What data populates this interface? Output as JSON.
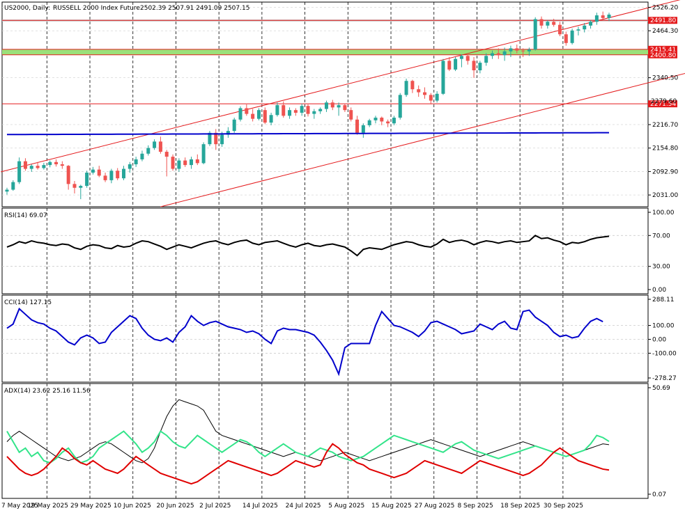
{
  "header": {
    "symbol": "US2000, Daily:",
    "description": "RUSSELL 2000 Index Future",
    "ohlc": "2502.39 2507.91 2491.09 2507.15"
  },
  "colors": {
    "bull": "#26a69a",
    "bear": "#ef5350",
    "ma": "#0000cc",
    "channel": "#e41a1c",
    "hline": "#e41a1c",
    "zone_green": "#9be07a",
    "zone_grey": "#c8c8c8",
    "rsi": "#000000",
    "cci": "#0000cc",
    "adx": "#000000",
    "plus_di": "#33e48a",
    "minus_di": "#e00000"
  },
  "chart_data": [
    {
      "panel": "price",
      "type": "candlestick",
      "ylim": [
        2000,
        2540
      ],
      "yticks": [
        "2526.20",
        "2464.30",
        "2340.50",
        "2216.70",
        "2154.80",
        "2092.90",
        "2031.00"
      ],
      "price_tags": [
        "2491.80",
        "2415.41",
        "2400.80",
        "2271.54"
      ],
      "partial_tag": "2279.60",
      "x_dates": [
        "7 May 2025",
        "19 May 2025",
        "29 May 2025",
        "10 Jun 2025",
        "20 Jun 2025",
        "2 Jul 2025",
        "14 Jul 2025",
        "24 Jul 2025",
        "5 Aug 2025",
        "15 Aug 2025",
        "27 Aug 2025",
        "8 Sep 2025",
        "18 Sep 2025",
        "30 Sep 2025"
      ],
      "candles": [
        [
          2040,
          2050,
          2032,
          2045
        ],
        [
          2045,
          2070,
          2042,
          2065
        ],
        [
          2065,
          2130,
          2060,
          2120
        ],
        [
          2120,
          2128,
          2095,
          2100
        ],
        [
          2100,
          2112,
          2092,
          2108
        ],
        [
          2108,
          2118,
          2098,
          2102
        ],
        [
          2102,
          2116,
          2098,
          2110
        ],
        [
          2110,
          2122,
          2104,
          2118
        ],
        [
          2118,
          2125,
          2106,
          2112
        ],
        [
          2112,
          2120,
          2100,
          2108
        ],
        [
          2108,
          2110,
          2045,
          2060
        ],
        [
          2060,
          2068,
          2035,
          2050
        ],
        [
          2050,
          2058,
          2020,
          2055
        ],
        [
          2055,
          2095,
          2050,
          2090
        ],
        [
          2090,
          2105,
          2085,
          2098
        ],
        [
          2098,
          2108,
          2078,
          2082
        ],
        [
          2082,
          2090,
          2065,
          2070
        ],
        [
          2070,
          2100,
          2062,
          2095
        ],
        [
          2095,
          2102,
          2070,
          2075
        ],
        [
          2075,
          2108,
          2070,
          2100
        ],
        [
          2100,
          2118,
          2090,
          2112
        ],
        [
          2112,
          2132,
          2105,
          2125
        ],
        [
          2125,
          2148,
          2120,
          2140
        ],
        [
          2140,
          2162,
          2135,
          2155
        ],
        [
          2155,
          2178,
          2150,
          2172
        ],
        [
          2172,
          2185,
          2140,
          2145
        ],
        [
          2145,
          2150,
          2080,
          2132
        ],
        [
          2132,
          2138,
          2095,
          2100
        ],
        [
          2100,
          2128,
          2092,
          2122
        ],
        [
          2122,
          2130,
          2105,
          2110
        ],
        [
          2110,
          2132,
          2100,
          2125
        ],
        [
          2125,
          2138,
          2110,
          2115
        ],
        [
          2115,
          2170,
          2112,
          2165
        ],
        [
          2165,
          2200,
          2160,
          2195
        ],
        [
          2195,
          2205,
          2150,
          2165
        ],
        [
          2165,
          2198,
          2158,
          2190
        ],
        [
          2190,
          2210,
          2182,
          2200
        ],
        [
          2200,
          2235,
          2195,
          2230
        ],
        [
          2230,
          2265,
          2225,
          2260
        ],
        [
          2260,
          2270,
          2240,
          2245
        ],
        [
          2245,
          2258,
          2225,
          2232
        ],
        [
          2232,
          2260,
          2228,
          2255
        ],
        [
          2255,
          2262,
          2218,
          2222
        ],
        [
          2222,
          2248,
          2215,
          2242
        ],
        [
          2242,
          2275,
          2238,
          2268
        ],
        [
          2268,
          2278,
          2235,
          2240
        ],
        [
          2240,
          2262,
          2232,
          2255
        ],
        [
          2255,
          2260,
          2240,
          2248
        ],
        [
          2248,
          2272,
          2240,
          2266
        ],
        [
          2266,
          2270,
          2238,
          2245
        ],
        [
          2245,
          2258,
          2232,
          2252
        ],
        [
          2252,
          2262,
          2245,
          2258
        ],
        [
          2258,
          2280,
          2250,
          2275
        ],
        [
          2275,
          2282,
          2255,
          2262
        ],
        [
          2262,
          2275,
          2240,
          2268
        ],
        [
          2268,
          2272,
          2250,
          2255
        ],
        [
          2255,
          2262,
          2225,
          2230
        ],
        [
          2230,
          2240,
          2190,
          2195
        ],
        [
          2195,
          2220,
          2182,
          2215
        ],
        [
          2215,
          2232,
          2210,
          2228
        ],
        [
          2228,
          2240,
          2220,
          2235
        ],
        [
          2235,
          2238,
          2215,
          2225
        ],
        [
          2225,
          2230,
          2210,
          2220
        ],
        [
          2220,
          2240,
          2215,
          2235
        ],
        [
          2235,
          2300,
          2230,
          2295
        ],
        [
          2295,
          2338,
          2290,
          2332
        ],
        [
          2332,
          2335,
          2300,
          2310
        ],
        [
          2310,
          2320,
          2290,
          2302
        ],
        [
          2302,
          2315,
          2285,
          2295
        ],
        [
          2295,
          2300,
          2270,
          2280
        ],
        [
          2280,
          2305,
          2275,
          2298
        ],
        [
          2298,
          2390,
          2295,
          2385
        ],
        [
          2385,
          2395,
          2358,
          2362
        ],
        [
          2362,
          2395,
          2358,
          2390
        ],
        [
          2390,
          2402,
          2368,
          2398
        ],
        [
          2398,
          2402,
          2375,
          2385
        ],
        [
          2385,
          2395,
          2340,
          2360
        ],
        [
          2360,
          2385,
          2352,
          2380
        ],
        [
          2380,
          2405,
          2372,
          2398
        ],
        [
          2398,
          2412,
          2390,
          2405
        ],
        [
          2405,
          2418,
          2390,
          2400
        ],
        [
          2400,
          2420,
          2385,
          2410
        ],
        [
          2410,
          2425,
          2395,
          2418
        ],
        [
          2418,
          2428,
          2405,
          2412
        ],
        [
          2412,
          2418,
          2395,
          2410
        ],
        [
          2410,
          2420,
          2398,
          2415
        ],
        [
          2415,
          2500,
          2412,
          2495
        ],
        [
          2495,
          2502,
          2470,
          2478
        ],
        [
          2478,
          2492,
          2470,
          2488
        ],
        [
          2488,
          2496,
          2475,
          2480
        ],
        [
          2480,
          2488,
          2450,
          2455
        ],
        [
          2455,
          2462,
          2425,
          2432
        ],
        [
          2432,
          2470,
          2428,
          2465
        ],
        [
          2465,
          2475,
          2452,
          2468
        ],
        [
          2468,
          2485,
          2460,
          2478
        ],
        [
          2478,
          2492,
          2470,
          2488
        ],
        [
          2488,
          2512,
          2480,
          2505
        ],
        [
          2505,
          2515,
          2495,
          2498
        ],
        [
          2498,
          2512,
          2490,
          2507
        ]
      ]
    },
    {
      "panel": "RSI",
      "type": "line",
      "label": "RSI(14) 69.07",
      "ylim": [
        0,
        100
      ],
      "yticks": [
        "100.00",
        "70.00",
        "30.00",
        "0.00"
      ],
      "series": [
        {
          "values": [
            55,
            58,
            62,
            60,
            63,
            61,
            60,
            58,
            57,
            59,
            58,
            54,
            52,
            56,
            58,
            57,
            54,
            53,
            57,
            55,
            56,
            60,
            63,
            62,
            59,
            56,
            52,
            55,
            58,
            56,
            54,
            57,
            60,
            62,
            63,
            60,
            58,
            61,
            63,
            64,
            60,
            58,
            61,
            62,
            63,
            60,
            57,
            55,
            58,
            60,
            57,
            56,
            58,
            59,
            57,
            55,
            50,
            44,
            52,
            54,
            53,
            52,
            55,
            58,
            60,
            62,
            61,
            58,
            56,
            55,
            59,
            65,
            61,
            63,
            64,
            62,
            58,
            61,
            63,
            62,
            60,
            62,
            63,
            61,
            62,
            63,
            70,
            66,
            67,
            64,
            62,
            58,
            61,
            60,
            62,
            65,
            67,
            68,
            69
          ]
        }
      ]
    },
    {
      "panel": "CCI",
      "type": "line",
      "label": "CCI(14) 127.15",
      "ylim": [
        -278.27,
        288.11
      ],
      "yticks": [
        "288.11",
        "100.00",
        "0.00",
        "-100.00",
        "-278.27"
      ],
      "series": [
        {
          "values": [
            80,
            110,
            220,
            180,
            140,
            120,
            110,
            80,
            60,
            20,
            -20,
            -40,
            10,
            30,
            10,
            -30,
            -20,
            50,
            90,
            130,
            170,
            150,
            80,
            30,
            0,
            -10,
            10,
            -20,
            50,
            90,
            170,
            130,
            100,
            120,
            130,
            110,
            90,
            80,
            70,
            50,
            60,
            40,
            0,
            -30,
            60,
            80,
            70,
            70,
            60,
            50,
            30,
            -20,
            -80,
            -150,
            -250,
            -60,
            -30,
            -30,
            -30,
            -30,
            100,
            200,
            150,
            100,
            90,
            70,
            50,
            20,
            60,
            120,
            130,
            110,
            90,
            70,
            40,
            50,
            60,
            110,
            90,
            70,
            110,
            130,
            80,
            70,
            200,
            210,
            160,
            130,
            100,
            50,
            20,
            30,
            10,
            20,
            80,
            130,
            150,
            127
          ]
        }
      ]
    },
    {
      "panel": "ADX",
      "type": "line",
      "label": "ADX(14) 23.62 25.16 11.56",
      "ylim": [
        0.07,
        50.69
      ],
      "yticks": [
        "50.69",
        "0.07"
      ],
      "series": [
        {
          "values": [
            25,
            28,
            30,
            28,
            26,
            24,
            22,
            20,
            18,
            17,
            16,
            17,
            18,
            20,
            22,
            24,
            25,
            24,
            22,
            20,
            18,
            16,
            15,
            17,
            22,
            30,
            37,
            42,
            45,
            44,
            43,
            42,
            40,
            35,
            30,
            28,
            27,
            26,
            25,
            24,
            23,
            22,
            21,
            20,
            19,
            18,
            19,
            20,
            19,
            18,
            17,
            16,
            17,
            18,
            19,
            20,
            19,
            18,
            17,
            16,
            17,
            18,
            19,
            20,
            21,
            22,
            23,
            24,
            25,
            26,
            25,
            24,
            23,
            22,
            21,
            20,
            19,
            18,
            19,
            20,
            21,
            22,
            23,
            24,
            25,
            24,
            23,
            22,
            21,
            20,
            19,
            18,
            19,
            20,
            21,
            22,
            23,
            24,
            23.62
          ]
        },
        {
          "values": [
            30,
            25,
            20,
            22,
            18,
            20,
            16,
            15,
            17,
            20,
            22,
            18,
            15,
            16,
            18,
            22,
            24,
            26,
            28,
            30,
            27,
            24,
            20,
            22,
            25,
            30,
            28,
            25,
            23,
            22,
            25,
            28,
            26,
            24,
            22,
            20,
            22,
            24,
            26,
            25,
            23,
            20,
            18,
            20,
            22,
            24,
            22,
            20,
            19,
            18,
            20,
            22,
            21,
            20,
            18,
            17,
            16,
            17,
            18,
            20,
            22,
            24,
            26,
            28,
            27,
            26,
            25,
            24,
            23,
            22,
            21,
            20,
            22,
            24,
            25,
            23,
            21,
            20,
            19,
            18,
            17,
            18,
            19,
            20,
            21,
            22,
            23,
            22,
            21,
            20,
            19,
            18,
            19,
            20,
            21,
            24,
            28,
            27,
            25.16
          ]
        },
        {
          "values": [
            18,
            15,
            12,
            10,
            9,
            10,
            12,
            15,
            18,
            22,
            20,
            17,
            15,
            14,
            16,
            14,
            12,
            11,
            10,
            12,
            15,
            18,
            16,
            14,
            12,
            10,
            9,
            8,
            7,
            6,
            5,
            6,
            8,
            10,
            12,
            14,
            16,
            15,
            14,
            13,
            12,
            11,
            10,
            9,
            10,
            12,
            14,
            16,
            15,
            14,
            13,
            14,
            20,
            24,
            22,
            19,
            17,
            15,
            14,
            12,
            11,
            10,
            9,
            8,
            9,
            10,
            12,
            14,
            16,
            15,
            14,
            13,
            12,
            11,
            10,
            12,
            14,
            16,
            15,
            14,
            13,
            12,
            11,
            10,
            9,
            10,
            12,
            14,
            17,
            20,
            22,
            20,
            18,
            16,
            15,
            14,
            13,
            12,
            11.56
          ]
        }
      ]
    }
  ]
}
